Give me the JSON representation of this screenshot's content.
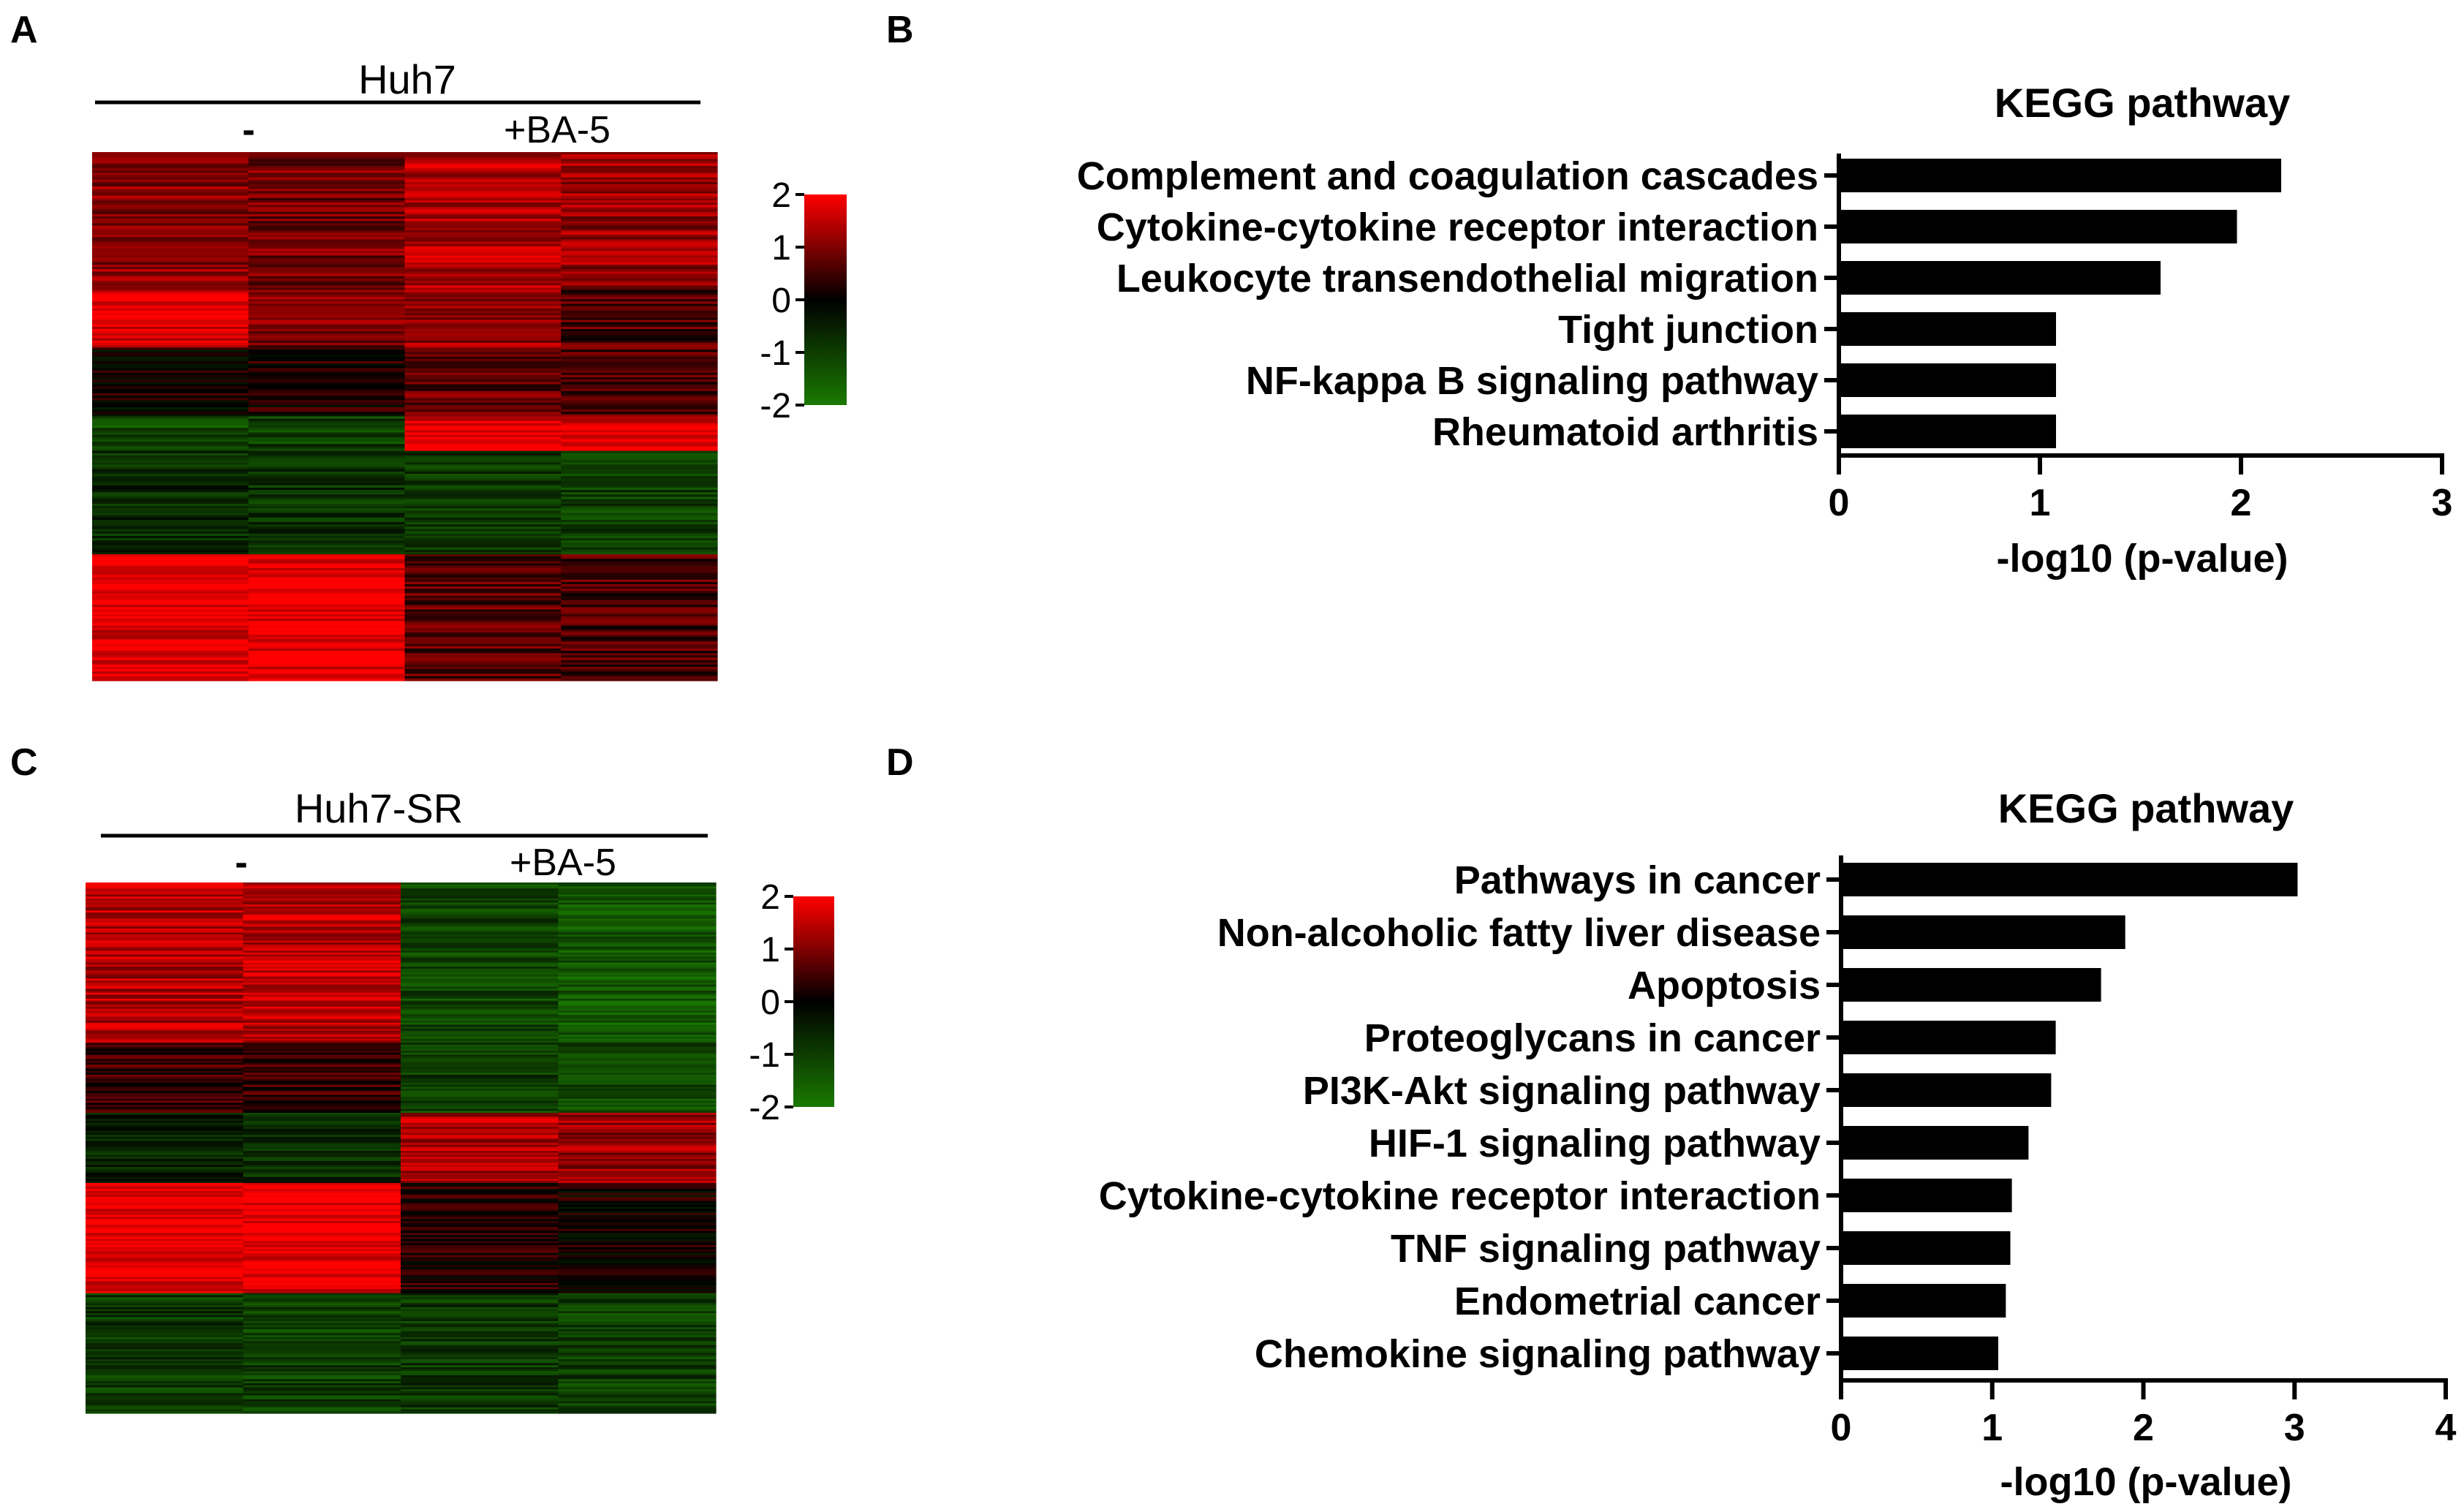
{
  "chart_data": [
    {
      "panel": "A",
      "type": "heatmap",
      "group_label": "Huh7",
      "conditions": [
        "-",
        "+BA-5"
      ],
      "color_scale": {
        "ticks": [
          "2",
          "1",
          "0",
          "-1",
          "-2"
        ],
        "low_color": "#1a7a00",
        "mid_color": "#000000",
        "high_color": "#ff0000"
      },
      "blocks": [
        {
          "name": "red-mixed",
          "rows": 60,
          "cols": [
            0.55,
            0.45,
            0.7,
            0.6
          ]
        },
        {
          "name": "red-top-left",
          "rows": 25,
          "cols": [
            0.9,
            0.5,
            0.6,
            0.3
          ]
        },
        {
          "name": "dark-mixed",
          "rows": 30,
          "cols": [
            0.05,
            0.1,
            0.4,
            0.3
          ]
        },
        {
          "name": "green-then-red",
          "rows": 15,
          "cols": [
            -0.6,
            -0.5,
            0.95,
            0.9
          ]
        },
        {
          "name": "green-block",
          "rows": 45,
          "cols": [
            -0.35,
            -0.4,
            -0.45,
            -0.5
          ]
        },
        {
          "name": "red-bottom",
          "rows": 55,
          "cols": [
            0.9,
            0.95,
            0.35,
            0.3
          ]
        }
      ]
    },
    {
      "panel": "B",
      "type": "bar",
      "orientation": "horizontal",
      "title": "KEGG pathway",
      "categories": [
        "Complement and coagulation cascades",
        "Cytokine-cytokine receptor interaction",
        "Leukocyte transendothelial migration",
        "Tight junction",
        "NF-kappa B signaling pathway",
        "Rheumatoid arthritis"
      ],
      "values": [
        2.2,
        1.98,
        1.6,
        1.08,
        1.08,
        1.08
      ],
      "xlabel": "-log10 (p-value)",
      "xlim": [
        0,
        3
      ],
      "xticks": [
        0,
        1,
        2,
        3
      ]
    },
    {
      "panel": "C",
      "type": "heatmap",
      "group_label": "Huh7-SR",
      "conditions": [
        "-",
        "+BA-5"
      ],
      "color_scale": {
        "ticks": [
          "2",
          "1",
          "0",
          "-1",
          "-2"
        ],
        "low_color": "#1a7a00",
        "mid_color": "#000000",
        "high_color": "#ff0000"
      },
      "blocks": [
        {
          "name": "red-then-green",
          "rows": 80,
          "cols": [
            0.7,
            0.75,
            -0.55,
            -0.7
          ]
        },
        {
          "name": "dark-then-green",
          "rows": 35,
          "cols": [
            0.2,
            0.25,
            -0.5,
            -0.6
          ]
        },
        {
          "name": "green-then-red",
          "rows": 35,
          "cols": [
            -0.3,
            -0.35,
            0.7,
            0.6
          ]
        },
        {
          "name": "red-then-dark",
          "rows": 55,
          "cols": [
            0.95,
            0.95,
            0.15,
            0.05
          ]
        },
        {
          "name": "green-bottom",
          "rows": 60,
          "cols": [
            -0.45,
            -0.5,
            -0.45,
            -0.5
          ]
        }
      ]
    },
    {
      "panel": "D",
      "type": "bar",
      "orientation": "horizontal",
      "title": "KEGG pathway",
      "categories": [
        "Pathways in cancer",
        "Non-alcoholic fatty liver disease",
        "Apoptosis",
        "Proteoglycans in cancer",
        "PI3K-Akt signaling pathway",
        "HIF-1 signaling pathway",
        "Cytokine-cytokine receptor interaction",
        "TNF signaling pathway",
        "Endometrial cancer",
        "Chemokine signaling pathway"
      ],
      "values": [
        3.02,
        1.88,
        1.72,
        1.42,
        1.39,
        1.24,
        1.13,
        1.12,
        1.09,
        1.04
      ],
      "xlabel": "-log10 (p-value)",
      "xlim": [
        0,
        4
      ],
      "xticks": [
        0,
        1,
        2,
        3,
        4
      ]
    }
  ]
}
